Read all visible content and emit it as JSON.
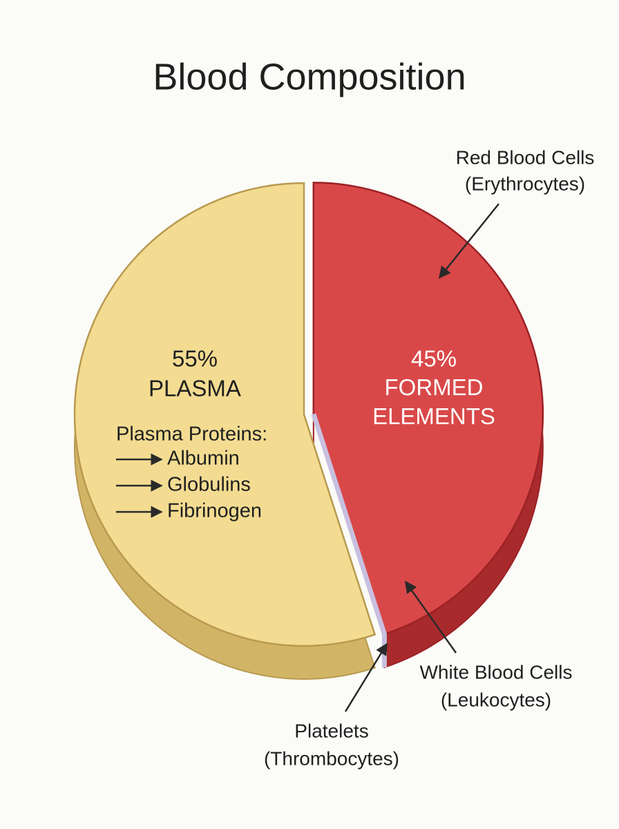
{
  "chart_data": {
    "type": "pie",
    "title": "Blood Composition",
    "categories": [
      "PLASMA",
      "FORMED ELEMENTS"
    ],
    "values": [
      55,
      45
    ],
    "value_labels": [
      "55%",
      "45%"
    ],
    "colors": [
      "#f3dc92",
      "#d94848"
    ],
    "annotations": {
      "plasma_proteins": {
        "title": "Plasma Proteins:",
        "items": [
          "Albumin",
          "Globulins",
          "Fibrinogen"
        ]
      },
      "callouts": [
        {
          "lines": [
            "Red Blood Cells",
            "(Erythrocytes)"
          ]
        },
        {
          "lines": [
            "White Blood Cells",
            "(Leukocytes)"
          ]
        },
        {
          "lines": [
            "Platelets",
            "(Thrombocytes)"
          ]
        }
      ]
    }
  }
}
